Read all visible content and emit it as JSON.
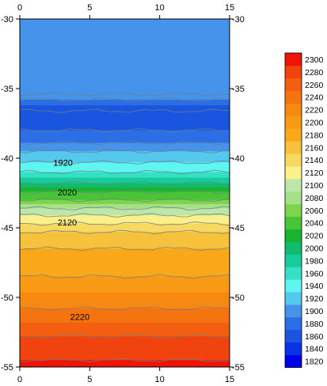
{
  "chart_data": {
    "type": "heatmap",
    "title": "",
    "xlabel": "",
    "ylabel": "",
    "xlim": [
      0,
      15
    ],
    "ylim": [
      -55,
      -30
    ],
    "x_ticks": [
      "0",
      "5",
      "10",
      "15"
    ],
    "y_ticks": [
      "-30",
      "-35",
      "-40",
      "-45",
      "-50",
      "-55"
    ],
    "grid": false,
    "legend": "colorbar-right",
    "colorbar": {
      "levels": [
        1820,
        1840,
        1860,
        1880,
        1900,
        1920,
        1940,
        1960,
        1980,
        2000,
        2020,
        2040,
        2060,
        2080,
        2100,
        2120,
        2140,
        2160,
        2180,
        2200,
        2220,
        2240,
        2260,
        2280,
        2300
      ],
      "colors": [
        "#0000e6",
        "#0c32e6",
        "#1a55e0",
        "#2c6ee6",
        "#4593ea",
        "#55c8ee",
        "#5ff5f0",
        "#35e0c4",
        "#16cc9a",
        "#10bb70",
        "#1ab42e",
        "#48c536",
        "#7fd54a",
        "#a6e089",
        "#bde6a8",
        "#fbf08a",
        "#f7d860",
        "#f6c23c",
        "#f9a819",
        "#f99a15",
        "#f88910",
        "#f6740f",
        "#f35f10",
        "#f0430e",
        "#ee1508"
      ]
    },
    "profile": {
      "depth": [
        -30,
        -35.4,
        -35.8,
        -36.6,
        -38.0,
        -38.9,
        -39.5,
        -40.3,
        -41.0,
        -41.8,
        -42.4,
        -43.0,
        -43.6,
        -44.1,
        -44.7,
        -45.3,
        -46.5,
        -48.5,
        -50.8,
        -52.8,
        -54.5,
        -55
      ],
      "value": [
        1900,
        1900,
        1880,
        1840,
        1860,
        1880,
        1900,
        1920,
        1940,
        1980,
        2020,
        2040,
        2080,
        2100,
        2120,
        2140,
        2160,
        2180,
        2220,
        2260,
        2280,
        2300
      ]
    },
    "contour_labels": [
      {
        "text": "1920",
        "x": 2.4,
        "y": -40.3
      },
      {
        "text": "2020",
        "x": 2.7,
        "y": -42.45
      },
      {
        "text": "2120",
        "x": 2.7,
        "y": -44.6
      },
      {
        "text": "2220",
        "x": 3.6,
        "y": -51.4
      }
    ]
  }
}
